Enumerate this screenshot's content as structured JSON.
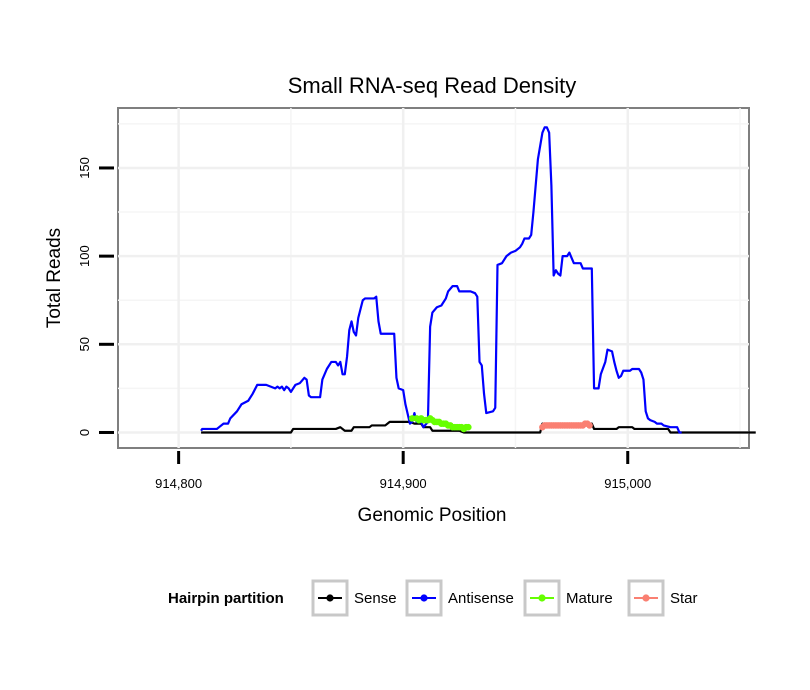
{
  "chart_data": {
    "type": "line",
    "title": "Small RNA-seq Read Density",
    "xlabel": "Genomic Position",
    "ylabel": "Total Reads",
    "xlim": [
      914773,
      915054
    ],
    "ylim": [
      -8.8,
      184
    ],
    "x_ticks": [
      914800,
      914900,
      915000
    ],
    "x_tick_labels": [
      "914,800",
      "914,900",
      "915,000"
    ],
    "y_ticks": [
      0,
      50,
      100,
      150
    ],
    "y_tick_labels": [
      "0",
      "50",
      "100",
      "150"
    ],
    "grid": true,
    "legend": {
      "title": "Hairpin partition",
      "placement": "bottom",
      "entries": [
        {
          "label": "Sense",
          "color": "#000000"
        },
        {
          "label": "Antisense",
          "color": "#0000ff"
        },
        {
          "label": "Mature",
          "color": "#66ff00"
        },
        {
          "label": "Star",
          "color": "#fa8072"
        }
      ]
    },
    "series": [
      {
        "name": "Sense",
        "color": "#000000",
        "marker": "line",
        "points": [
          [
            914810,
            0
          ],
          [
            914850,
            0
          ],
          [
            914851,
            2
          ],
          [
            914870,
            2
          ],
          [
            914872,
            3
          ],
          [
            914874,
            1
          ],
          [
            914877,
            1
          ],
          [
            914878,
            3
          ],
          [
            914885,
            3
          ],
          [
            914886,
            4
          ],
          [
            914892,
            4
          ],
          [
            914894,
            6
          ],
          [
            914903,
            6
          ],
          [
            914905,
            5
          ],
          [
            914908,
            5
          ],
          [
            914909,
            3
          ],
          [
            914912,
            3
          ],
          [
            914913,
            1
          ],
          [
            914925,
            1
          ],
          [
            914927,
            0
          ],
          [
            914961,
            0
          ],
          [
            914962,
            5
          ],
          [
            914965,
            5
          ],
          [
            914966,
            4
          ],
          [
            914978,
            4
          ],
          [
            914980,
            5
          ],
          [
            914984,
            5
          ],
          [
            914985,
            2
          ],
          [
            914995,
            2
          ],
          [
            914996,
            3
          ],
          [
            915002,
            3
          ],
          [
            915003,
            2
          ],
          [
            915018,
            2
          ],
          [
            915019,
            0
          ],
          [
            915057,
            0
          ]
        ]
      },
      {
        "name": "Antisense",
        "color": "#0000ff",
        "marker": "line",
        "points": [
          [
            914810,
            1
          ],
          [
            914810.5,
            2
          ],
          [
            914817,
            2
          ],
          [
            914818,
            3
          ],
          [
            914820,
            5
          ],
          [
            914822,
            5
          ],
          [
            914823,
            8
          ],
          [
            914826,
            12
          ],
          [
            914828,
            16
          ],
          [
            914831,
            18
          ],
          [
            914833,
            22
          ],
          [
            914835,
            27
          ],
          [
            914839,
            27
          ],
          [
            914841,
            26
          ],
          [
            914843,
            25
          ],
          [
            914844,
            26
          ],
          [
            914845,
            25
          ],
          [
            914846,
            26
          ],
          [
            914847,
            24
          ],
          [
            914848,
            26
          ],
          [
            914849,
            25
          ],
          [
            914850,
            23
          ],
          [
            914851,
            25
          ],
          [
            914852,
            27
          ],
          [
            914854,
            28
          ],
          [
            914856,
            31
          ],
          [
            914857,
            30
          ],
          [
            914858,
            21
          ],
          [
            914859,
            20
          ],
          [
            914863,
            20
          ],
          [
            914864,
            30
          ],
          [
            914866,
            36
          ],
          [
            914868,
            40
          ],
          [
            914870,
            40
          ],
          [
            914871,
            38
          ],
          [
            914872,
            40
          ],
          [
            914873,
            33
          ],
          [
            914874,
            33
          ],
          [
            914875,
            43
          ],
          [
            914876,
            58
          ],
          [
            914877,
            63
          ],
          [
            914878,
            57
          ],
          [
            914879,
            55
          ],
          [
            914880,
            65
          ],
          [
            914881,
            70
          ],
          [
            914882,
            75
          ],
          [
            914883,
            76
          ],
          [
            914887,
            76
          ],
          [
            914888,
            77
          ],
          [
            914889,
            63
          ],
          [
            914890,
            56
          ],
          [
            914896,
            56
          ],
          [
            914897,
            31
          ],
          [
            914898,
            25
          ],
          [
            914900,
            24
          ],
          [
            914901,
            16
          ],
          [
            914903,
            5
          ],
          [
            914904,
            6
          ],
          [
            914905,
            11
          ],
          [
            914906,
            6
          ],
          [
            914908,
            6
          ],
          [
            914909,
            3
          ],
          [
            914911,
            6
          ],
          [
            914912,
            60
          ],
          [
            914913,
            68
          ],
          [
            914915,
            71
          ],
          [
            914917,
            72
          ],
          [
            914919,
            76
          ],
          [
            914920,
            80
          ],
          [
            914922,
            83
          ],
          [
            914924,
            83
          ],
          [
            914925,
            80
          ],
          [
            914930,
            80
          ],
          [
            914932,
            79
          ],
          [
            914933,
            77
          ],
          [
            914934,
            40
          ],
          [
            914935,
            38
          ],
          [
            914936,
            22
          ],
          [
            914937,
            11
          ],
          [
            914940,
            12
          ],
          [
            914941,
            14
          ],
          [
            914942,
            95
          ],
          [
            914944,
            96
          ],
          [
            914946,
            100
          ],
          [
            914948,
            102
          ],
          [
            914950,
            103
          ],
          [
            914952,
            105
          ],
          [
            914953,
            107
          ],
          [
            914954,
            110
          ],
          [
            914956,
            110
          ],
          [
            914957,
            112
          ],
          [
            914958,
            125
          ],
          [
            914959,
            140
          ],
          [
            914960,
            155
          ],
          [
            914962,
            170
          ],
          [
            914963,
            173
          ],
          [
            914964,
            173
          ],
          [
            914965,
            170
          ],
          [
            914966,
            140
          ],
          [
            914967,
            89
          ],
          [
            914968,
            92
          ],
          [
            914969,
            90
          ],
          [
            914970,
            89
          ],
          [
            914971,
            100
          ],
          [
            914973,
            100
          ],
          [
            914974,
            102
          ],
          [
            914975,
            99
          ],
          [
            914976,
            96
          ],
          [
            914979,
            96
          ],
          [
            914980,
            93
          ],
          [
            914984,
            93
          ],
          [
            914985,
            25
          ],
          [
            914987,
            25
          ],
          [
            914988,
            33
          ],
          [
            914990,
            40
          ],
          [
            914991,
            47
          ],
          [
            914993,
            46
          ],
          [
            914994,
            40
          ],
          [
            914995,
            35
          ],
          [
            914996,
            31
          ],
          [
            914997,
            32
          ],
          [
            914998,
            35
          ],
          [
            915001,
            35
          ],
          [
            915002,
            36
          ],
          [
            915005,
            36
          ],
          [
            915006,
            34
          ],
          [
            915007,
            30
          ],
          [
            915008,
            12
          ],
          [
            915009,
            8
          ],
          [
            915010,
            7
          ],
          [
            915012,
            6
          ],
          [
            915013,
            5
          ],
          [
            915015,
            5
          ],
          [
            915016,
            4
          ],
          [
            915019,
            3
          ],
          [
            915020,
            3
          ],
          [
            915022,
            3
          ],
          [
            915023,
            0
          ],
          [
            915024,
            0
          ]
        ]
      },
      {
        "name": "Mature",
        "color": "#66ff00",
        "marker": "points",
        "points": [
          [
            914904,
            8
          ],
          [
            914906,
            8
          ],
          [
            914907,
            7
          ],
          [
            914908,
            8
          ],
          [
            914909,
            7
          ],
          [
            914910,
            7
          ],
          [
            914911,
            7
          ],
          [
            914912,
            8
          ],
          [
            914913,
            7
          ],
          [
            914914,
            6
          ],
          [
            914915,
            6
          ],
          [
            914916,
            6
          ],
          [
            914917,
            5
          ],
          [
            914918,
            5
          ],
          [
            914919,
            5
          ],
          [
            914920,
            4
          ],
          [
            914921,
            4
          ],
          [
            914922,
            3
          ],
          [
            914923,
            3
          ],
          [
            914924,
            3
          ],
          [
            914925,
            3
          ],
          [
            914926,
            3
          ],
          [
            914927,
            2
          ],
          [
            914928,
            3
          ],
          [
            914929,
            3
          ]
        ]
      },
      {
        "name": "Star",
        "color": "#fa8072",
        "marker": "points",
        "points": [
          [
            914962,
            3
          ],
          [
            914963,
            4
          ],
          [
            914964,
            4
          ],
          [
            914965,
            4
          ],
          [
            914966,
            4
          ],
          [
            914967,
            4
          ],
          [
            914968,
            4
          ],
          [
            914969,
            4
          ],
          [
            914970,
            4
          ],
          [
            914971,
            4
          ],
          [
            914972,
            4
          ],
          [
            914973,
            4
          ],
          [
            914974,
            4
          ],
          [
            914975,
            4
          ],
          [
            914976,
            4
          ],
          [
            914977,
            4
          ],
          [
            914978,
            4
          ],
          [
            914979,
            4
          ],
          [
            914980,
            4
          ],
          [
            914981,
            5
          ],
          [
            914982,
            5
          ],
          [
            914983,
            4
          ]
        ]
      }
    ]
  }
}
